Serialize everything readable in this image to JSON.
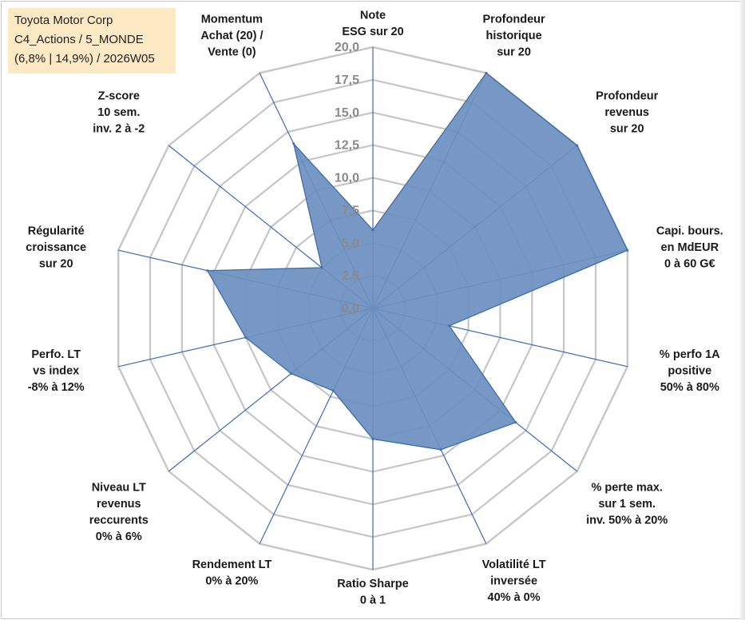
{
  "header": {
    "line1": "Toyota Motor Corp",
    "line2": "C4_Actions / 5_MONDE",
    "line3": "(6,8% | 14,9%) / 2026W05"
  },
  "colors": {
    "fill": "#6b8fbf",
    "stroke": "#3f6ea8",
    "grid": "#c6c6c6",
    "spoke": "#3d6cb4",
    "label": "#1a1a1a",
    "tick": "#8a8a8a"
  },
  "chart_data": {
    "type": "radar",
    "ylim": [
      0,
      20
    ],
    "tick_labels": [
      "0,0",
      "2,5",
      "5,0",
      "7,5",
      "10,0",
      "12,5",
      "15,0",
      "17,5",
      "20,0"
    ],
    "axes": [
      {
        "label": [
          "Note",
          "ESG sur 20"
        ],
        "value": 6
      },
      {
        "label": [
          "Profondeur",
          "historique",
          "sur 20"
        ],
        "value": 20
      },
      {
        "label": [
          "Profondeur",
          "revenus",
          "sur 20"
        ],
        "value": 20
      },
      {
        "label": [
          "Capi. bours.",
          "en MdEUR",
          "0 à 60 G€"
        ],
        "value": 20
      },
      {
        "label": [
          "% perfo 1A",
          "positive",
          "50% à 80%"
        ],
        "value": 6
      },
      {
        "label": [
          "% perte max.",
          "sur 1 sem.",
          "inv. 50% à 20%"
        ],
        "value": 14
      },
      {
        "label": [
          "Volatilité LT",
          "inversée",
          "40% à 0%"
        ],
        "value": 12
      },
      {
        "label": [
          "Ratio Sharpe",
          "0 à 1"
        ],
        "value": 10
      },
      {
        "label": [
          "Rendement LT",
          "0% à 20%"
        ],
        "value": 7
      },
      {
        "label": [
          "Niveau LT",
          "revenus",
          "reccurents",
          "0% à 6%"
        ],
        "value": 8
      },
      {
        "label": [
          "Perfo. LT",
          "vs index",
          "-8% à 12%"
        ],
        "value": 10
      },
      {
        "label": [
          "Régularité",
          "croissance",
          "sur 20"
        ],
        "value": 13
      },
      {
        "label": [
          "Z-score",
          "10 sem.",
          "inv. 2 à -2"
        ],
        "value": 5
      },
      {
        "label": [
          "Momentum",
          "Achat (20) /",
          "Vente (0)"
        ],
        "value": 14
      }
    ]
  }
}
